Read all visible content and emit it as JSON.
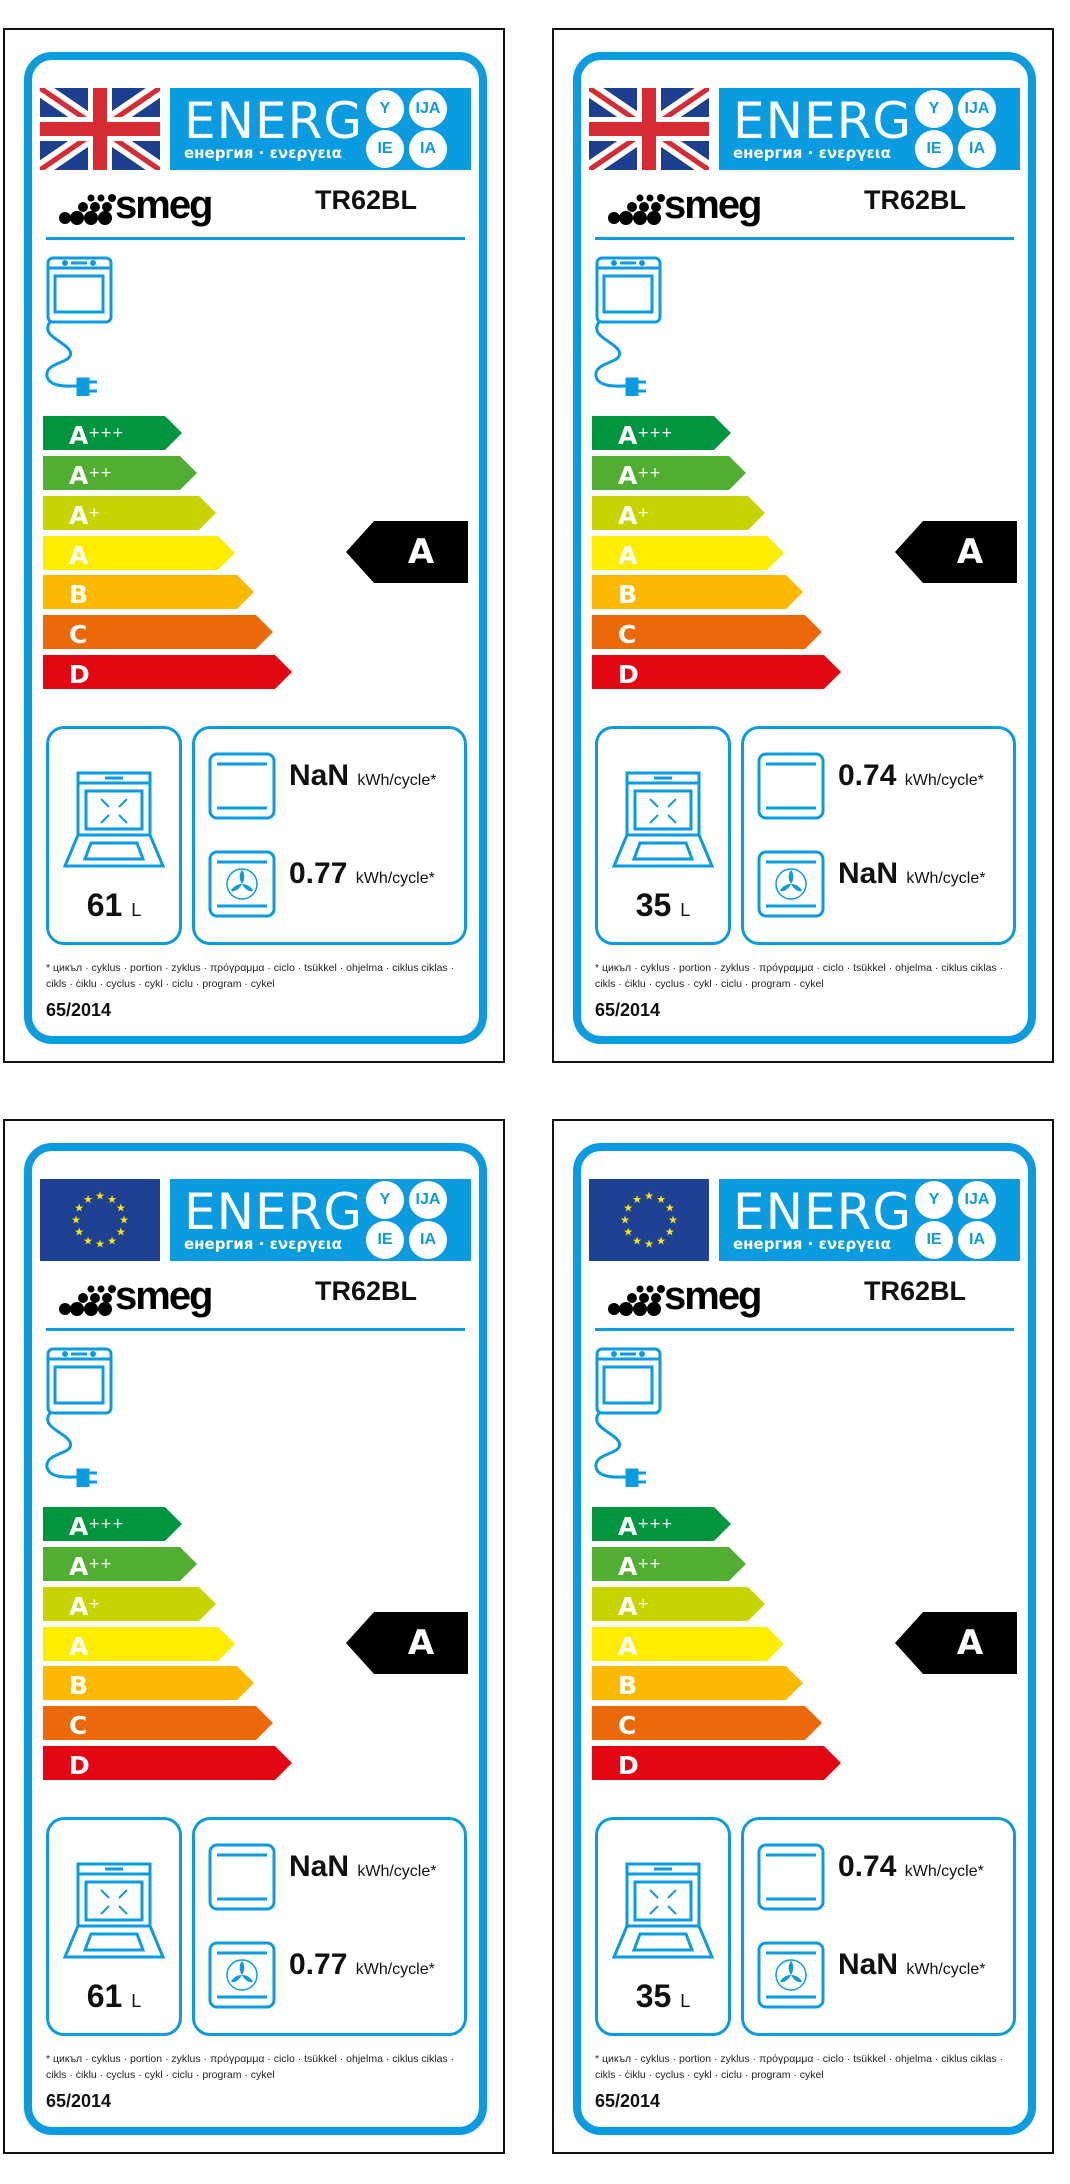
{
  "common": {
    "energy_title": "ENERG",
    "energy_subtitle": "енергия · ενεργεια",
    "lang_badges": [
      "Y",
      "IJA",
      "IE",
      "IA"
    ],
    "brand": "smeg",
    "model": "TR62BL",
    "unit_volume": "L",
    "unit_energy": "kWh/cycle*",
    "footnote": "* цикъл · cyklus · portion · zyklus · πρόγραμμα · ciclo · tsükkel · ohjelma · ciklus ciklas · cikls · ċiklu · cyclus · cykl · ciclu · program · cykel",
    "regulation": "65/2014",
    "scale": [
      {
        "letter": "A",
        "plus": "+++",
        "color": "#009640"
      },
      {
        "letter": "A",
        "plus": "++",
        "color": "#52ae32"
      },
      {
        "letter": "A",
        "plus": "+",
        "color": "#c8d400"
      },
      {
        "letter": "A",
        "plus": "",
        "color": "#ffed00"
      },
      {
        "letter": "B",
        "plus": "",
        "color": "#fbba00"
      },
      {
        "letter": "C",
        "plus": "",
        "color": "#eb6909"
      },
      {
        "letter": "D",
        "plus": "",
        "color": "#e30613"
      }
    ],
    "accent_color": "#0a9be0"
  },
  "labels": [
    {
      "flag": "uk-flag",
      "rating": "A",
      "volume": "61",
      "conventional": "NaN",
      "fan": "0.77"
    },
    {
      "flag": "uk-flag",
      "rating": "A",
      "volume": "35",
      "conventional": "0.74",
      "fan": "NaN"
    },
    {
      "flag": "eu-flag",
      "rating": "A",
      "volume": "61",
      "conventional": "NaN",
      "fan": "0.77"
    },
    {
      "flag": "eu-flag",
      "rating": "A",
      "volume": "35",
      "conventional": "0.74",
      "fan": "NaN"
    }
  ]
}
